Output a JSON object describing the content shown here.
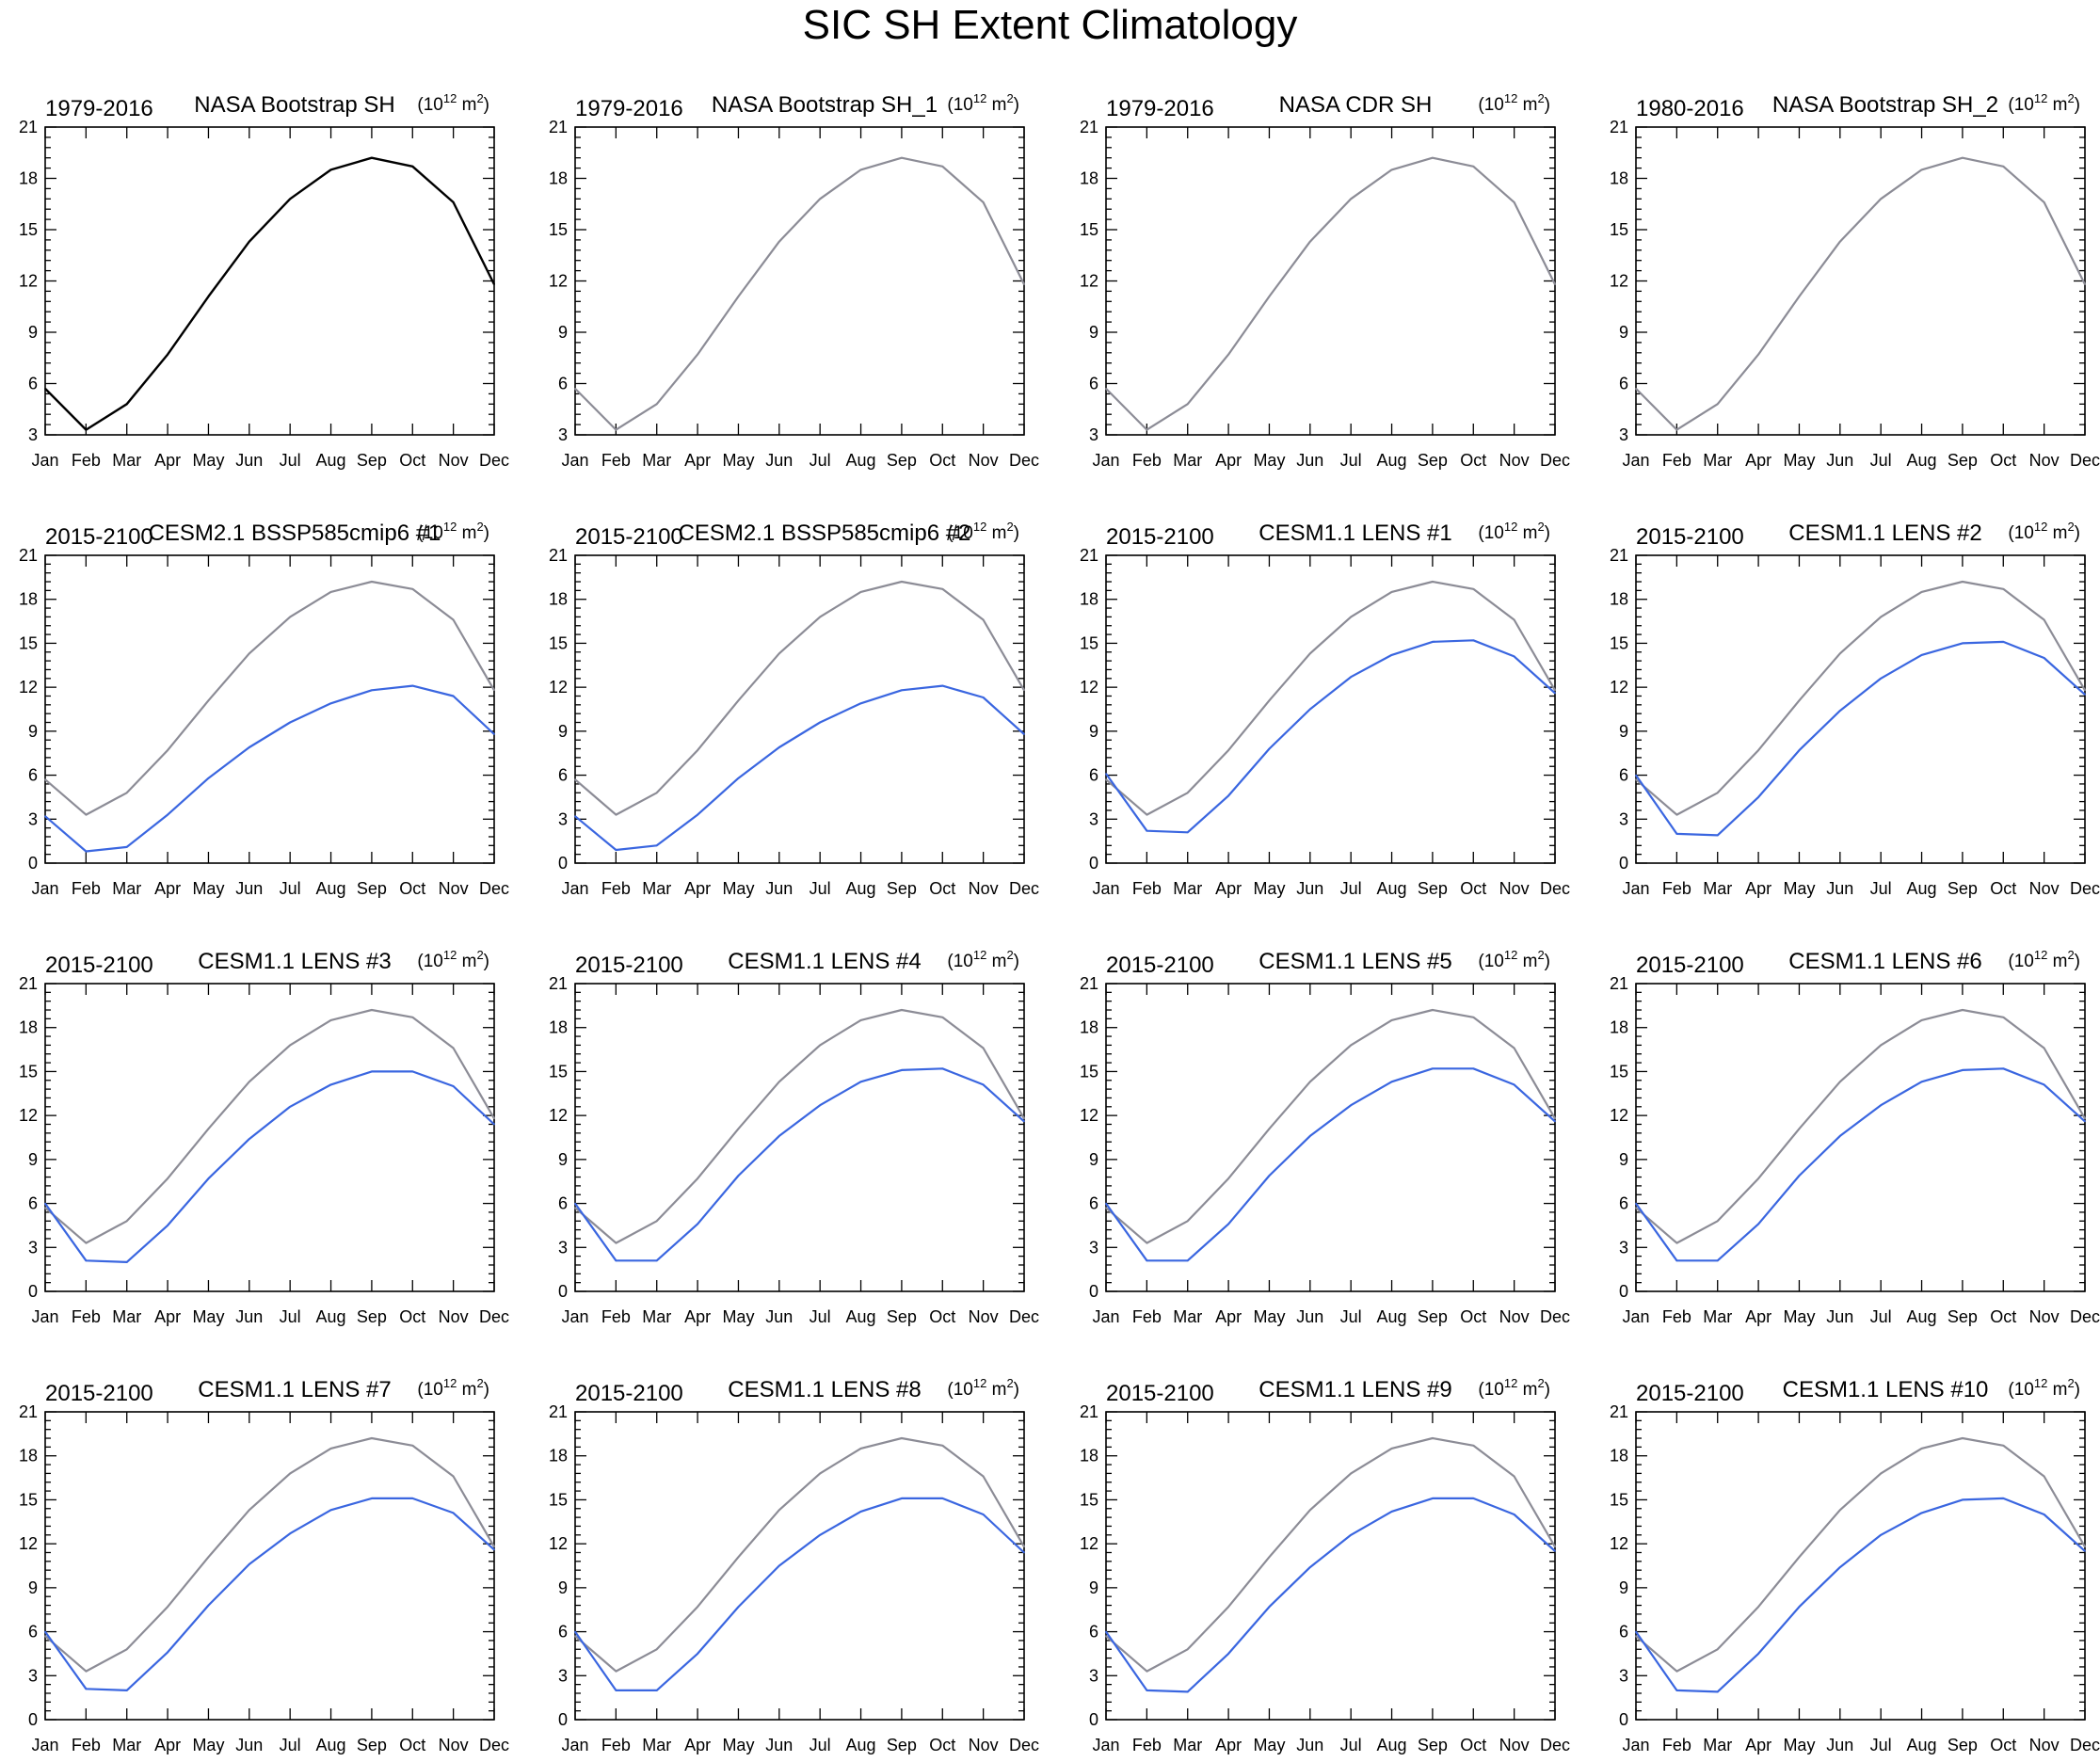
{
  "figure": {
    "title": "SIC SH Extent Climatology"
  },
  "colors": {
    "observed": "#000000",
    "reference": "#8c8c96",
    "model": "#3a66e0",
    "axis": "#000000"
  },
  "chart_data": [
    {
      "type": "line",
      "period": "1979-2016",
      "title": "NASA Bootstrap SH",
      "units": "(10^12 m^2)",
      "categories": [
        "Jan",
        "Feb",
        "Mar",
        "Apr",
        "May",
        "Jun",
        "Jul",
        "Aug",
        "Sep",
        "Oct",
        "Nov",
        "Dec"
      ],
      "ylim": [
        3,
        21
      ],
      "yticks": [
        3,
        6,
        9,
        12,
        15,
        18,
        21
      ],
      "series": [
        {
          "role": "observed",
          "values": [
            5.7,
            3.3,
            4.8,
            7.7,
            11.1,
            14.3,
            16.8,
            18.5,
            19.2,
            18.7,
            16.6,
            11.8
          ]
        }
      ]
    },
    {
      "type": "line",
      "period": "1979-2016",
      "title": "NASA Bootstrap SH_1",
      "units": "(10^12 m^2)",
      "categories": [
        "Jan",
        "Feb",
        "Mar",
        "Apr",
        "May",
        "Jun",
        "Jul",
        "Aug",
        "Sep",
        "Oct",
        "Nov",
        "Dec"
      ],
      "ylim": [
        3,
        21
      ],
      "yticks": [
        3,
        6,
        9,
        12,
        15,
        18,
        21
      ],
      "series": [
        {
          "role": "reference",
          "values": [
            5.7,
            3.3,
            4.8,
            7.7,
            11.1,
            14.3,
            16.8,
            18.5,
            19.2,
            18.7,
            16.6,
            11.8
          ]
        }
      ]
    },
    {
      "type": "line",
      "period": "1979-2016",
      "title": "NASA CDR SH",
      "units": "(10^12 m^2)",
      "categories": [
        "Jan",
        "Feb",
        "Mar",
        "Apr",
        "May",
        "Jun",
        "Jul",
        "Aug",
        "Sep",
        "Oct",
        "Nov",
        "Dec"
      ],
      "ylim": [
        3,
        21
      ],
      "yticks": [
        3,
        6,
        9,
        12,
        15,
        18,
        21
      ],
      "series": [
        {
          "role": "reference",
          "values": [
            5.7,
            3.3,
            4.8,
            7.7,
            11.1,
            14.3,
            16.8,
            18.5,
            19.2,
            18.7,
            16.6,
            11.8
          ]
        }
      ]
    },
    {
      "type": "line",
      "period": "1980-2016",
      "title": "NASA Bootstrap SH_2",
      "units": "(10^12 m^2)",
      "categories": [
        "Jan",
        "Feb",
        "Mar",
        "Apr",
        "May",
        "Jun",
        "Jul",
        "Aug",
        "Sep",
        "Oct",
        "Nov",
        "Dec"
      ],
      "ylim": [
        3,
        21
      ],
      "yticks": [
        3,
        6,
        9,
        12,
        15,
        18,
        21
      ],
      "series": [
        {
          "role": "reference",
          "values": [
            5.7,
            3.3,
            4.8,
            7.7,
            11.1,
            14.3,
            16.8,
            18.5,
            19.2,
            18.7,
            16.6,
            11.8
          ]
        }
      ]
    },
    {
      "type": "line",
      "period": "2015-2100",
      "title": "CESM2.1 BSSP585cmip6 #1",
      "units": "(10^12 m^2)",
      "categories": [
        "Jan",
        "Feb",
        "Mar",
        "Apr",
        "May",
        "Jun",
        "Jul",
        "Aug",
        "Sep",
        "Oct",
        "Nov",
        "Dec"
      ],
      "ylim": [
        0,
        21
      ],
      "yticks": [
        0,
        3,
        6,
        9,
        12,
        15,
        18,
        21
      ],
      "series": [
        {
          "role": "reference",
          "values": [
            5.7,
            3.3,
            4.8,
            7.7,
            11.1,
            14.3,
            16.8,
            18.5,
            19.2,
            18.7,
            16.6,
            11.8
          ]
        },
        {
          "role": "model",
          "values": [
            3.2,
            0.8,
            1.1,
            3.3,
            5.8,
            7.9,
            9.6,
            10.9,
            11.8,
            12.1,
            11.4,
            8.8
          ]
        }
      ]
    },
    {
      "type": "line",
      "period": "2015-2100",
      "title": "CESM2.1 BSSP585cmip6 #2",
      "units": "(10^12 m^2)",
      "categories": [
        "Jan",
        "Feb",
        "Mar",
        "Apr",
        "May",
        "Jun",
        "Jul",
        "Aug",
        "Sep",
        "Oct",
        "Nov",
        "Dec"
      ],
      "ylim": [
        0,
        21
      ],
      "yticks": [
        0,
        3,
        6,
        9,
        12,
        15,
        18,
        21
      ],
      "series": [
        {
          "role": "reference",
          "values": [
            5.7,
            3.3,
            4.8,
            7.7,
            11.1,
            14.3,
            16.8,
            18.5,
            19.2,
            18.7,
            16.6,
            11.8
          ]
        },
        {
          "role": "model",
          "values": [
            3.2,
            0.9,
            1.2,
            3.3,
            5.8,
            7.9,
            9.6,
            10.9,
            11.8,
            12.1,
            11.3,
            8.8
          ]
        }
      ]
    },
    {
      "type": "line",
      "period": "2015-2100",
      "title": "CESM1.1 LENS #1",
      "units": "(10^12 m^2)",
      "categories": [
        "Jan",
        "Feb",
        "Mar",
        "Apr",
        "May",
        "Jun",
        "Jul",
        "Aug",
        "Sep",
        "Oct",
        "Nov",
        "Dec"
      ],
      "ylim": [
        0,
        21
      ],
      "yticks": [
        0,
        3,
        6,
        9,
        12,
        15,
        18,
        21
      ],
      "series": [
        {
          "role": "reference",
          "values": [
            5.7,
            3.3,
            4.8,
            7.7,
            11.1,
            14.3,
            16.8,
            18.5,
            19.2,
            18.7,
            16.6,
            11.8
          ]
        },
        {
          "role": "model",
          "values": [
            6.1,
            2.2,
            2.1,
            4.6,
            7.8,
            10.5,
            12.7,
            14.2,
            15.1,
            15.2,
            14.1,
            11.6
          ]
        }
      ]
    },
    {
      "type": "line",
      "period": "2015-2100",
      "title": "CESM1.1 LENS #2",
      "units": "(10^12 m^2)",
      "categories": [
        "Jan",
        "Feb",
        "Mar",
        "Apr",
        "May",
        "Jun",
        "Jul",
        "Aug",
        "Sep",
        "Oct",
        "Nov",
        "Dec"
      ],
      "ylim": [
        0,
        21
      ],
      "yticks": [
        0,
        3,
        6,
        9,
        12,
        15,
        18,
        21
      ],
      "series": [
        {
          "role": "reference",
          "values": [
            5.7,
            3.3,
            4.8,
            7.7,
            11.1,
            14.3,
            16.8,
            18.5,
            19.2,
            18.7,
            16.6,
            11.8
          ]
        },
        {
          "role": "model",
          "values": [
            6.0,
            2.0,
            1.9,
            4.5,
            7.7,
            10.4,
            12.6,
            14.2,
            15.0,
            15.1,
            14.0,
            11.5
          ]
        }
      ]
    },
    {
      "type": "line",
      "period": "2015-2100",
      "title": "CESM1.1 LENS #3",
      "units": "(10^12 m^2)",
      "categories": [
        "Jan",
        "Feb",
        "Mar",
        "Apr",
        "May",
        "Jun",
        "Jul",
        "Aug",
        "Sep",
        "Oct",
        "Nov",
        "Dec"
      ],
      "ylim": [
        0,
        21
      ],
      "yticks": [
        0,
        3,
        6,
        9,
        12,
        15,
        18,
        21
      ],
      "series": [
        {
          "role": "reference",
          "values": [
            5.7,
            3.3,
            4.8,
            7.7,
            11.1,
            14.3,
            16.8,
            18.5,
            19.2,
            18.7,
            16.6,
            11.8
          ]
        },
        {
          "role": "model",
          "values": [
            6.0,
            2.1,
            2.0,
            4.5,
            7.7,
            10.4,
            12.6,
            14.1,
            15.0,
            15.0,
            14.0,
            11.4
          ]
        }
      ]
    },
    {
      "type": "line",
      "period": "2015-2100",
      "title": "CESM1.1 LENS #4",
      "units": "(10^12 m^2)",
      "categories": [
        "Jan",
        "Feb",
        "Mar",
        "Apr",
        "May",
        "Jun",
        "Jul",
        "Aug",
        "Sep",
        "Oct",
        "Nov",
        "Dec"
      ],
      "ylim": [
        0,
        21
      ],
      "yticks": [
        0,
        3,
        6,
        9,
        12,
        15,
        18,
        21
      ],
      "series": [
        {
          "role": "reference",
          "values": [
            5.7,
            3.3,
            4.8,
            7.7,
            11.1,
            14.3,
            16.8,
            18.5,
            19.2,
            18.7,
            16.6,
            11.8
          ]
        },
        {
          "role": "model",
          "values": [
            6.0,
            2.1,
            2.1,
            4.6,
            7.9,
            10.6,
            12.7,
            14.3,
            15.1,
            15.2,
            14.1,
            11.6
          ]
        }
      ]
    },
    {
      "type": "line",
      "period": "2015-2100",
      "title": "CESM1.1 LENS #5",
      "units": "(10^12 m^2)",
      "categories": [
        "Jan",
        "Feb",
        "Mar",
        "Apr",
        "May",
        "Jun",
        "Jul",
        "Aug",
        "Sep",
        "Oct",
        "Nov",
        "Dec"
      ],
      "ylim": [
        0,
        21
      ],
      "yticks": [
        0,
        3,
        6,
        9,
        12,
        15,
        18,
        21
      ],
      "series": [
        {
          "role": "reference",
          "values": [
            5.7,
            3.3,
            4.8,
            7.7,
            11.1,
            14.3,
            16.8,
            18.5,
            19.2,
            18.7,
            16.6,
            11.8
          ]
        },
        {
          "role": "model",
          "values": [
            6.0,
            2.1,
            2.1,
            4.6,
            7.9,
            10.6,
            12.7,
            14.3,
            15.2,
            15.2,
            14.1,
            11.6
          ]
        }
      ]
    },
    {
      "type": "line",
      "period": "2015-2100",
      "title": "CESM1.1 LENS #6",
      "units": "(10^12 m^2)",
      "categories": [
        "Jan",
        "Feb",
        "Mar",
        "Apr",
        "May",
        "Jun",
        "Jul",
        "Aug",
        "Sep",
        "Oct",
        "Nov",
        "Dec"
      ],
      "ylim": [
        0,
        21
      ],
      "yticks": [
        0,
        3,
        6,
        9,
        12,
        15,
        18,
        21
      ],
      "series": [
        {
          "role": "reference",
          "values": [
            5.7,
            3.3,
            4.8,
            7.7,
            11.1,
            14.3,
            16.8,
            18.5,
            19.2,
            18.7,
            16.6,
            11.8
          ]
        },
        {
          "role": "model",
          "values": [
            6.0,
            2.1,
            2.1,
            4.6,
            7.9,
            10.6,
            12.7,
            14.3,
            15.1,
            15.2,
            14.1,
            11.6
          ]
        }
      ]
    },
    {
      "type": "line",
      "period": "2015-2100",
      "title": "CESM1.1 LENS #7",
      "units": "(10^12 m^2)",
      "categories": [
        "Jan",
        "Feb",
        "Mar",
        "Apr",
        "May",
        "Jun",
        "Jul",
        "Aug",
        "Sep",
        "Oct",
        "Nov",
        "Dec"
      ],
      "ylim": [
        0,
        21
      ],
      "yticks": [
        0,
        3,
        6,
        9,
        12,
        15,
        18,
        21
      ],
      "series": [
        {
          "role": "reference",
          "values": [
            5.7,
            3.3,
            4.8,
            7.7,
            11.1,
            14.3,
            16.8,
            18.5,
            19.2,
            18.7,
            16.6,
            11.8
          ]
        },
        {
          "role": "model",
          "values": [
            6.0,
            2.1,
            2.0,
            4.6,
            7.8,
            10.6,
            12.7,
            14.3,
            15.1,
            15.1,
            14.1,
            11.6
          ]
        }
      ]
    },
    {
      "type": "line",
      "period": "2015-2100",
      "title": "CESM1.1 LENS #8",
      "units": "(10^12 m^2)",
      "categories": [
        "Jan",
        "Feb",
        "Mar",
        "Apr",
        "May",
        "Jun",
        "Jul",
        "Aug",
        "Sep",
        "Oct",
        "Nov",
        "Dec"
      ],
      "ylim": [
        0,
        21
      ],
      "yticks": [
        0,
        3,
        6,
        9,
        12,
        15,
        18,
        21
      ],
      "series": [
        {
          "role": "reference",
          "values": [
            5.7,
            3.3,
            4.8,
            7.7,
            11.1,
            14.3,
            16.8,
            18.5,
            19.2,
            18.7,
            16.6,
            11.8
          ]
        },
        {
          "role": "model",
          "values": [
            6.0,
            2.0,
            2.0,
            4.5,
            7.7,
            10.5,
            12.6,
            14.2,
            15.1,
            15.1,
            14.0,
            11.4
          ]
        }
      ]
    },
    {
      "type": "line",
      "period": "2015-2100",
      "title": "CESM1.1 LENS #9",
      "units": "(10^12 m^2)",
      "categories": [
        "Jan",
        "Feb",
        "Mar",
        "Apr",
        "May",
        "Jun",
        "Jul",
        "Aug",
        "Sep",
        "Oct",
        "Nov",
        "Dec"
      ],
      "ylim": [
        0,
        21
      ],
      "yticks": [
        0,
        3,
        6,
        9,
        12,
        15,
        18,
        21
      ],
      "series": [
        {
          "role": "reference",
          "values": [
            5.7,
            3.3,
            4.8,
            7.7,
            11.1,
            14.3,
            16.8,
            18.5,
            19.2,
            18.7,
            16.6,
            11.8
          ]
        },
        {
          "role": "model",
          "values": [
            6.0,
            2.0,
            1.9,
            4.5,
            7.7,
            10.4,
            12.6,
            14.2,
            15.1,
            15.1,
            14.0,
            11.5
          ]
        }
      ]
    },
    {
      "type": "line",
      "period": "2015-2100",
      "title": "CESM1.1 LENS #10",
      "units": "(10^12 m^2)",
      "categories": [
        "Jan",
        "Feb",
        "Mar",
        "Apr",
        "May",
        "Jun",
        "Jul",
        "Aug",
        "Sep",
        "Oct",
        "Nov",
        "Dec"
      ],
      "ylim": [
        0,
        21
      ],
      "yticks": [
        0,
        3,
        6,
        9,
        12,
        15,
        18,
        21
      ],
      "series": [
        {
          "role": "reference",
          "values": [
            5.7,
            3.3,
            4.8,
            7.7,
            11.1,
            14.3,
            16.8,
            18.5,
            19.2,
            18.7,
            16.6,
            11.8
          ]
        },
        {
          "role": "model",
          "values": [
            6.0,
            2.0,
            1.9,
            4.5,
            7.7,
            10.4,
            12.6,
            14.1,
            15.0,
            15.1,
            14.0,
            11.5
          ]
        }
      ]
    }
  ]
}
